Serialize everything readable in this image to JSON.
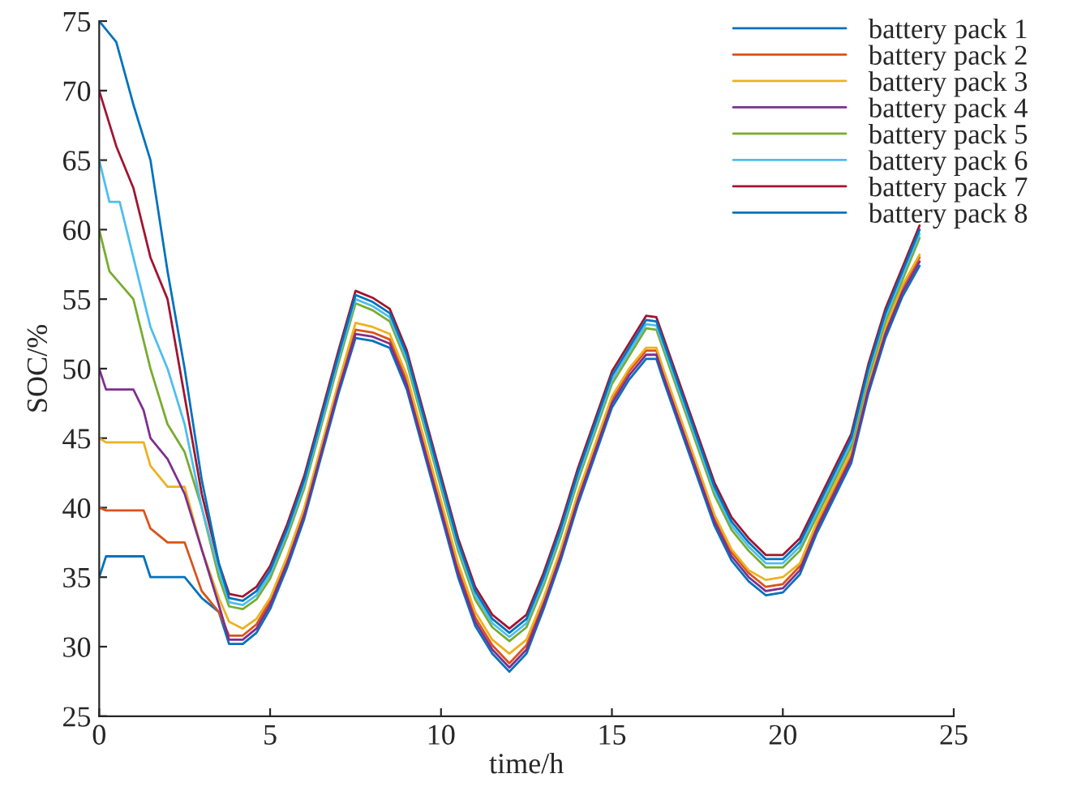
{
  "chart_data": {
    "type": "line",
    "xlabel": "time/h",
    "ylabel": "SOC/%",
    "xlim": [
      0,
      25
    ],
    "ylim": [
      25,
      75
    ],
    "xticks": [
      0,
      5,
      10,
      15,
      20,
      25
    ],
    "yticks": [
      25,
      30,
      35,
      40,
      45,
      50,
      55,
      60,
      65,
      70,
      75
    ],
    "legend": "top right",
    "grid": false,
    "series": [
      {
        "name": "battery pack 1",
        "color": "#0072bd",
        "x": [
          0,
          0.2,
          1.3,
          1.5,
          2.5,
          3,
          3.5,
          3.8,
          4.2,
          4.6,
          5,
          5.5,
          6,
          6.5,
          7,
          7.5,
          8,
          8.5,
          9,
          9.5,
          10,
          10.5,
          11,
          11.5,
          12,
          12.5,
          13,
          13.5,
          14,
          14.5,
          15,
          15.5,
          16,
          16.3,
          16.5,
          17,
          17.5,
          18,
          18.5,
          19,
          19.5,
          20,
          20.5,
          21,
          21.5,
          22,
          22.5,
          23,
          23.5,
          24
        ],
        "values": [
          35,
          36.5,
          36.5,
          35,
          35,
          33.5,
          32.5,
          30.2,
          30.2,
          31,
          32.7,
          35.7,
          39.2,
          43.7,
          48.2,
          52.2,
          52,
          51.5,
          48.5,
          44,
          39.5,
          35,
          31.5,
          29.5,
          28.2,
          29.5,
          32.7,
          36.2,
          40.2,
          43.7,
          47.2,
          49.2,
          50.7,
          50.7,
          49.2,
          45.7,
          42.2,
          38.7,
          36.2,
          34.7,
          33.7,
          33.9,
          35.2,
          38.2,
          40.7,
          43.2,
          48.2,
          52.2,
          55.2,
          57.4
        ]
      },
      {
        "name": "battery pack 2",
        "color": "#d95319",
        "x": [
          0,
          0.2,
          1.3,
          1.5,
          2,
          2.5,
          3,
          3.5,
          3.8,
          4.2,
          4.6,
          5,
          5.5,
          6,
          6.5,
          7,
          7.5,
          8,
          8.5,
          9,
          9.5,
          10,
          10.5,
          11,
          11.5,
          12,
          12.5,
          13,
          13.5,
          14,
          14.5,
          15,
          15.5,
          16,
          16.3,
          16.5,
          17,
          17.5,
          18,
          18.5,
          19,
          19.5,
          20,
          20.5,
          21,
          21.5,
          22,
          22.5,
          23,
          23.5,
          24
        ],
        "values": [
          40,
          39.8,
          39.8,
          38.5,
          37.5,
          37.5,
          34,
          32.5,
          30.8,
          30.8,
          31.6,
          33.3,
          36.3,
          39.8,
          44.3,
          48.8,
          52.8,
          52.6,
          52.1,
          49.1,
          44.6,
          40.1,
          35.6,
          32.1,
          30.1,
          28.8,
          30.1,
          33.3,
          36.8,
          40.8,
          44.3,
          47.8,
          49.8,
          51.3,
          51.3,
          49.8,
          46.3,
          42.8,
          39.3,
          36.8,
          35.3,
          34.3,
          34.5,
          35.8,
          38.8,
          41.3,
          43.8,
          48.8,
          52.8,
          55.8,
          58
        ]
      },
      {
        "name": "battery pack 3",
        "color": "#edb120",
        "x": [
          0,
          0.2,
          1.3,
          1.5,
          2,
          2.5,
          3,
          3.5,
          3.8,
          4.2,
          4.6,
          5,
          5.5,
          6,
          6.5,
          7,
          7.5,
          8,
          8.5,
          9,
          9.5,
          10,
          10.5,
          11,
          11.5,
          12,
          12.5,
          13,
          13.5,
          14,
          14.5,
          15,
          15.5,
          16,
          16.3,
          16.5,
          17,
          17.5,
          18,
          18.5,
          19,
          19.5,
          20,
          20.5,
          21,
          21.5,
          22,
          22.5,
          23,
          23.5,
          24
        ],
        "values": [
          45,
          44.7,
          44.7,
          43,
          41.5,
          41.5,
          37,
          33.5,
          31.8,
          31.3,
          32,
          33.5,
          36.5,
          40,
          44.5,
          49,
          53.3,
          53,
          52.5,
          49.5,
          45,
          40.5,
          36,
          32.5,
          30.5,
          29.5,
          30.5,
          33.5,
          37,
          41,
          44.5,
          48,
          50,
          51.5,
          51.5,
          50,
          46.5,
          43,
          39.5,
          37,
          35.5,
          34.8,
          35,
          36,
          39,
          41.5,
          44,
          49,
          53,
          56,
          58.2
        ]
      },
      {
        "name": "battery pack 4",
        "color": "#7e2f8e",
        "x": [
          0,
          0.2,
          1,
          1.3,
          1.5,
          2,
          2.5,
          3,
          3.5,
          3.8,
          4.2,
          4.6,
          5,
          5.5,
          6,
          6.5,
          7,
          7.5,
          8,
          8.5,
          9,
          9.5,
          10,
          10.5,
          11,
          11.5,
          12,
          12.5,
          13,
          13.5,
          14,
          14.5,
          15,
          15.5,
          16,
          16.3,
          16.5,
          17,
          17.5,
          18,
          18.5,
          19,
          19.5,
          20,
          20.5,
          21,
          21.5,
          22,
          22.5,
          23,
          23.5,
          24
        ],
        "values": [
          50,
          48.5,
          48.5,
          47,
          45,
          43.5,
          41,
          37,
          33,
          30.5,
          30.5,
          31.3,
          33,
          36,
          39.5,
          44,
          48.5,
          52.5,
          52.3,
          51.8,
          48.8,
          44.3,
          39.8,
          35.3,
          31.8,
          29.8,
          28.5,
          29.8,
          33,
          36.5,
          40.5,
          44,
          47.5,
          49.5,
          51,
          51,
          49.5,
          46,
          42.5,
          39,
          36.5,
          35,
          34,
          34.2,
          35.5,
          38.5,
          41,
          43.5,
          48.5,
          52.5,
          55.5,
          57.7
        ]
      },
      {
        "name": "battery pack 5",
        "color": "#77ac30",
        "x": [
          0,
          0.3,
          1,
          1.5,
          2,
          2.5,
          3,
          3.5,
          3.8,
          4.2,
          4.6,
          5,
          5.5,
          6,
          6.5,
          7,
          7.5,
          8,
          8.5,
          9,
          9.5,
          10,
          10.5,
          11,
          11.5,
          12,
          12.5,
          13,
          13.5,
          14,
          14.5,
          15,
          15.5,
          16,
          16.3,
          16.5,
          17,
          17.5,
          18,
          18.5,
          19,
          19.5,
          20,
          20.5,
          21,
          21.5,
          22,
          22.5,
          23,
          23.5,
          24
        ],
        "values": [
          60,
          57,
          55,
          50,
          46,
          44,
          40,
          35,
          32.9,
          32.7,
          33.4,
          34.9,
          37.9,
          41.4,
          45.9,
          50.4,
          54.7,
          54.2,
          53.4,
          50.4,
          45.9,
          41.4,
          36.9,
          33.4,
          31.4,
          30.4,
          31.4,
          34.4,
          37.9,
          41.9,
          45.4,
          48.9,
          50.9,
          52.9,
          52.8,
          51.4,
          47.9,
          44.4,
          40.9,
          38.4,
          36.9,
          35.7,
          35.7,
          36.9,
          39.4,
          41.9,
          44.4,
          49.4,
          53.4,
          56.4,
          59.4
        ]
      },
      {
        "name": "battery pack 6",
        "color": "#4dbeee",
        "x": [
          0,
          0.3,
          0.6,
          1,
          1.5,
          2,
          2.5,
          3,
          3.5,
          3.8,
          4.2,
          4.6,
          5,
          5.5,
          6,
          6.5,
          7,
          7.5,
          8,
          8.5,
          9,
          9.5,
          10,
          10.5,
          11,
          11.5,
          12,
          12.5,
          13,
          13.5,
          14,
          14.5,
          15,
          15.5,
          16,
          16.3,
          16.5,
          17,
          17.5,
          18,
          18.5,
          19,
          19.5,
          20,
          20.5,
          21,
          21.5,
          22,
          22.5,
          23,
          23.5,
          24
        ],
        "values": [
          65,
          62,
          62,
          58,
          53,
          50,
          46,
          40,
          35.5,
          33.2,
          33,
          33.7,
          35.2,
          38.2,
          41.7,
          46.2,
          50.7,
          55,
          54.5,
          53.7,
          50.7,
          46.2,
          41.7,
          37.2,
          33.7,
          31.7,
          30.7,
          31.7,
          34.7,
          38.2,
          42.2,
          45.7,
          49.2,
          51.2,
          53.2,
          53.1,
          51.7,
          48.2,
          44.7,
          41.2,
          38.7,
          37.2,
          36,
          36,
          37.2,
          39.7,
          42.2,
          44.7,
          49.7,
          53.7,
          56.7,
          59.7
        ]
      },
      {
        "name": "battery pack 7",
        "color": "#a2142f",
        "x": [
          0,
          0.5,
          1,
          1.5,
          2,
          2.5,
          3,
          3.5,
          3.8,
          4.2,
          4.6,
          5,
          5.5,
          6,
          6.5,
          7,
          7.5,
          8,
          8.5,
          9,
          9.5,
          10,
          10.5,
          11,
          11.5,
          12,
          12.5,
          13,
          13.5,
          14,
          14.5,
          15,
          15.5,
          16,
          16.3,
          16.5,
          17,
          17.5,
          18,
          18.5,
          19,
          19.5,
          20,
          20.5,
          21,
          21.5,
          22,
          22.5,
          23,
          23.5,
          24
        ],
        "values": [
          70,
          66,
          63,
          58,
          55,
          48,
          41,
          36,
          33.8,
          33.6,
          34.3,
          35.8,
          38.8,
          42.3,
          46.8,
          51.3,
          55.6,
          55.1,
          54.3,
          51.3,
          46.8,
          42.3,
          37.8,
          34.3,
          32.3,
          31.3,
          32.3,
          35.3,
          38.8,
          42.8,
          46.3,
          49.8,
          51.8,
          53.8,
          53.7,
          52.3,
          48.8,
          45.3,
          41.8,
          39.3,
          37.8,
          36.6,
          36.6,
          37.8,
          40.3,
          42.8,
          45.3,
          50.3,
          54.3,
          57.3,
          60.3
        ]
      },
      {
        "name": "battery pack 8",
        "color": "#0072bd",
        "x": [
          0,
          0.5,
          1,
          1.5,
          2,
          2.5,
          3,
          3.5,
          3.8,
          4.2,
          4.6,
          5,
          5.5,
          6,
          6.5,
          7,
          7.5,
          8,
          8.5,
          9,
          9.5,
          10,
          10.5,
          11,
          11.5,
          12,
          12.5,
          13,
          13.5,
          14,
          14.5,
          15,
          15.5,
          16,
          16.3,
          16.5,
          17,
          17.5,
          18,
          18.5,
          19,
          19.5,
          20,
          20.5,
          21,
          21.5,
          22,
          22.5,
          23,
          23.5,
          24
        ],
        "values": [
          75,
          73.5,
          69,
          65,
          57,
          50,
          42,
          36,
          33.5,
          33.3,
          34,
          35.5,
          38.5,
          42,
          46.5,
          51,
          55.3,
          54.8,
          54,
          51,
          46.5,
          42,
          37.5,
          34,
          32,
          31,
          32,
          35,
          38.5,
          42.5,
          46,
          49.5,
          51.5,
          53.5,
          53.4,
          52,
          48.5,
          45,
          41.5,
          39,
          37.5,
          36.3,
          36.3,
          37.5,
          40,
          42.5,
          45,
          50,
          54,
          57,
          60
        ]
      }
    ]
  }
}
